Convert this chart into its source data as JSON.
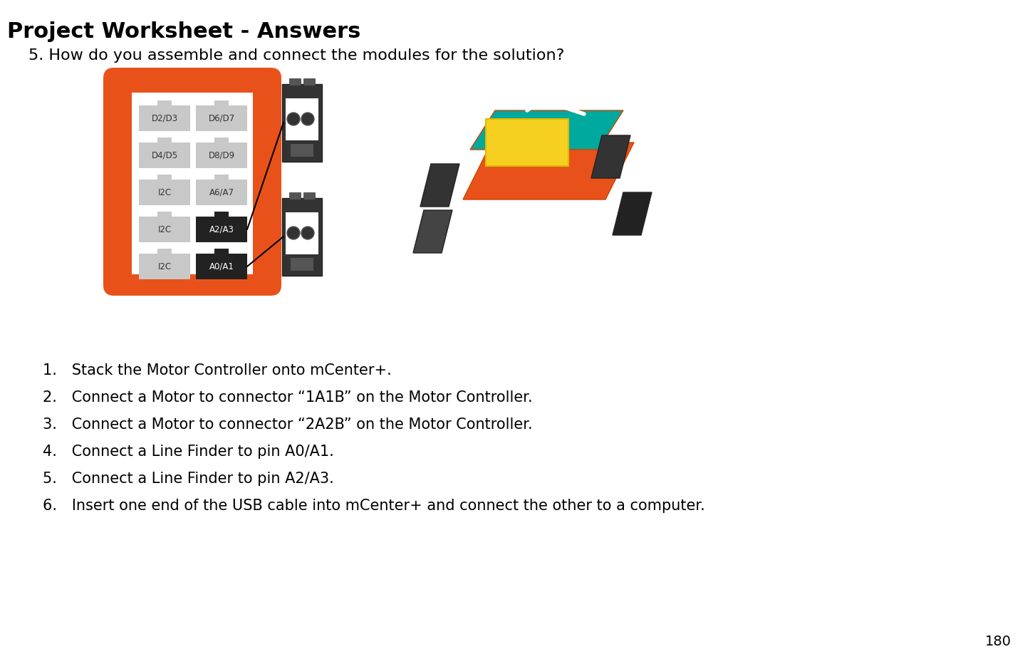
{
  "title": "Project Worksheet - Answers",
  "question": "5. How do you assemble and connect the modules for the solution?",
  "page_number": "180",
  "steps": [
    "Stack the Motor Controller onto mCenter+.",
    "Connect a Motor to connector “1A1B” on the Motor Controller.",
    "Connect a Motor to connector “2A2B” on the Motor Controller.",
    "Connect a Line Finder to pin A0/A1.",
    "Connect a Line Finder to pin A2/A3.",
    "Insert one end of the USB cable into mCenter+ and connect the other to a computer."
  ],
  "connector_labels": [
    "D2/D3",
    "D6/D7",
    "D4/D5",
    "D8/D9",
    "I2C",
    "A6/A7",
    "I2C",
    "A2/A3",
    "I2C",
    "A0/A1"
  ],
  "orange_color": "#E8521A",
  "dark_gray": "#333333",
  "light_gray": "#AAAAAA",
  "connector_bg": "#C8C8C8",
  "active_connector_bg": "#222222",
  "white": "#FFFFFF",
  "teal": "#00A99D",
  "background": "#FFFFFF",
  "title_fontsize": 22,
  "question_fontsize": 16,
  "step_fontsize": 15,
  "page_fontsize": 14,
  "font_family": "sans-serif"
}
